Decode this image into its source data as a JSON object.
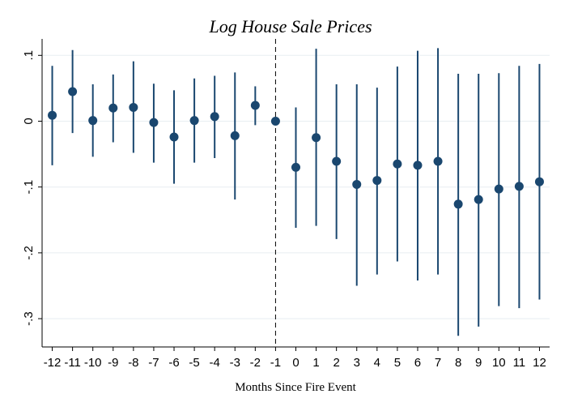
{
  "chart_data": {
    "type": "scatter",
    "title": "Log House Sale Prices",
    "xlabel": "Months Since Fire Event",
    "ylabel": "",
    "x": [
      -12,
      -11,
      -10,
      -9,
      -8,
      -7,
      -6,
      -5,
      -4,
      -3,
      -2,
      -1,
      0,
      1,
      2,
      3,
      4,
      5,
      6,
      7,
      8,
      9,
      10,
      11,
      12
    ],
    "x_tick_labels": [
      "-12",
      "-11",
      "-10",
      "-9",
      "-8",
      "-7",
      "-6",
      "-5",
      "-4",
      "-3",
      "-2",
      "-1",
      "0",
      "1",
      "2",
      "3",
      "4",
      "5",
      "6",
      "7",
      "8",
      "9",
      "10",
      "11",
      "12"
    ],
    "series": [
      {
        "estimate": [
          0.009,
          0.045,
          0.001,
          0.02,
          0.021,
          -0.002,
          -0.024,
          0.001,
          0.007,
          -0.022,
          0.024,
          0.0,
          -0.07,
          -0.025,
          -0.061,
          -0.096,
          -0.09,
          -0.065,
          -0.067,
          -0.061,
          -0.126,
          -0.119,
          -0.103,
          -0.099,
          -0.092
        ],
        "ci_low": [
          -0.067,
          -0.018,
          -0.054,
          -0.032,
          -0.048,
          -0.063,
          -0.095,
          -0.063,
          -0.056,
          -0.119,
          -0.006,
          0.0,
          -0.162,
          -0.159,
          -0.179,
          -0.25,
          -0.233,
          -0.213,
          -0.242,
          -0.233,
          -0.326,
          -0.312,
          -0.281,
          -0.284,
          -0.271
        ],
        "ci_high": [
          0.084,
          0.108,
          0.056,
          0.071,
          0.091,
          0.057,
          0.047,
          0.065,
          0.069,
          0.074,
          0.053,
          0.0,
          0.021,
          0.11,
          0.056,
          0.056,
          0.051,
          0.083,
          0.107,
          0.111,
          0.072,
          0.072,
          0.073,
          0.084,
          0.087
        ]
      }
    ],
    "y_ticks": [
      0.1,
      0,
      -0.1,
      -0.2,
      -0.3
    ],
    "y_tick_labels": [
      ".1",
      "0",
      "-.1",
      "-.2",
      "-.3"
    ],
    "xlim": [
      -12.5,
      12.5
    ],
    "ylim": [
      -0.343,
      0.125
    ],
    "reference_line_x": -1,
    "grid": true,
    "colors": {
      "marker": "#1a476f",
      "ci": "#1a476f",
      "grid": "#e8eef1"
    }
  }
}
